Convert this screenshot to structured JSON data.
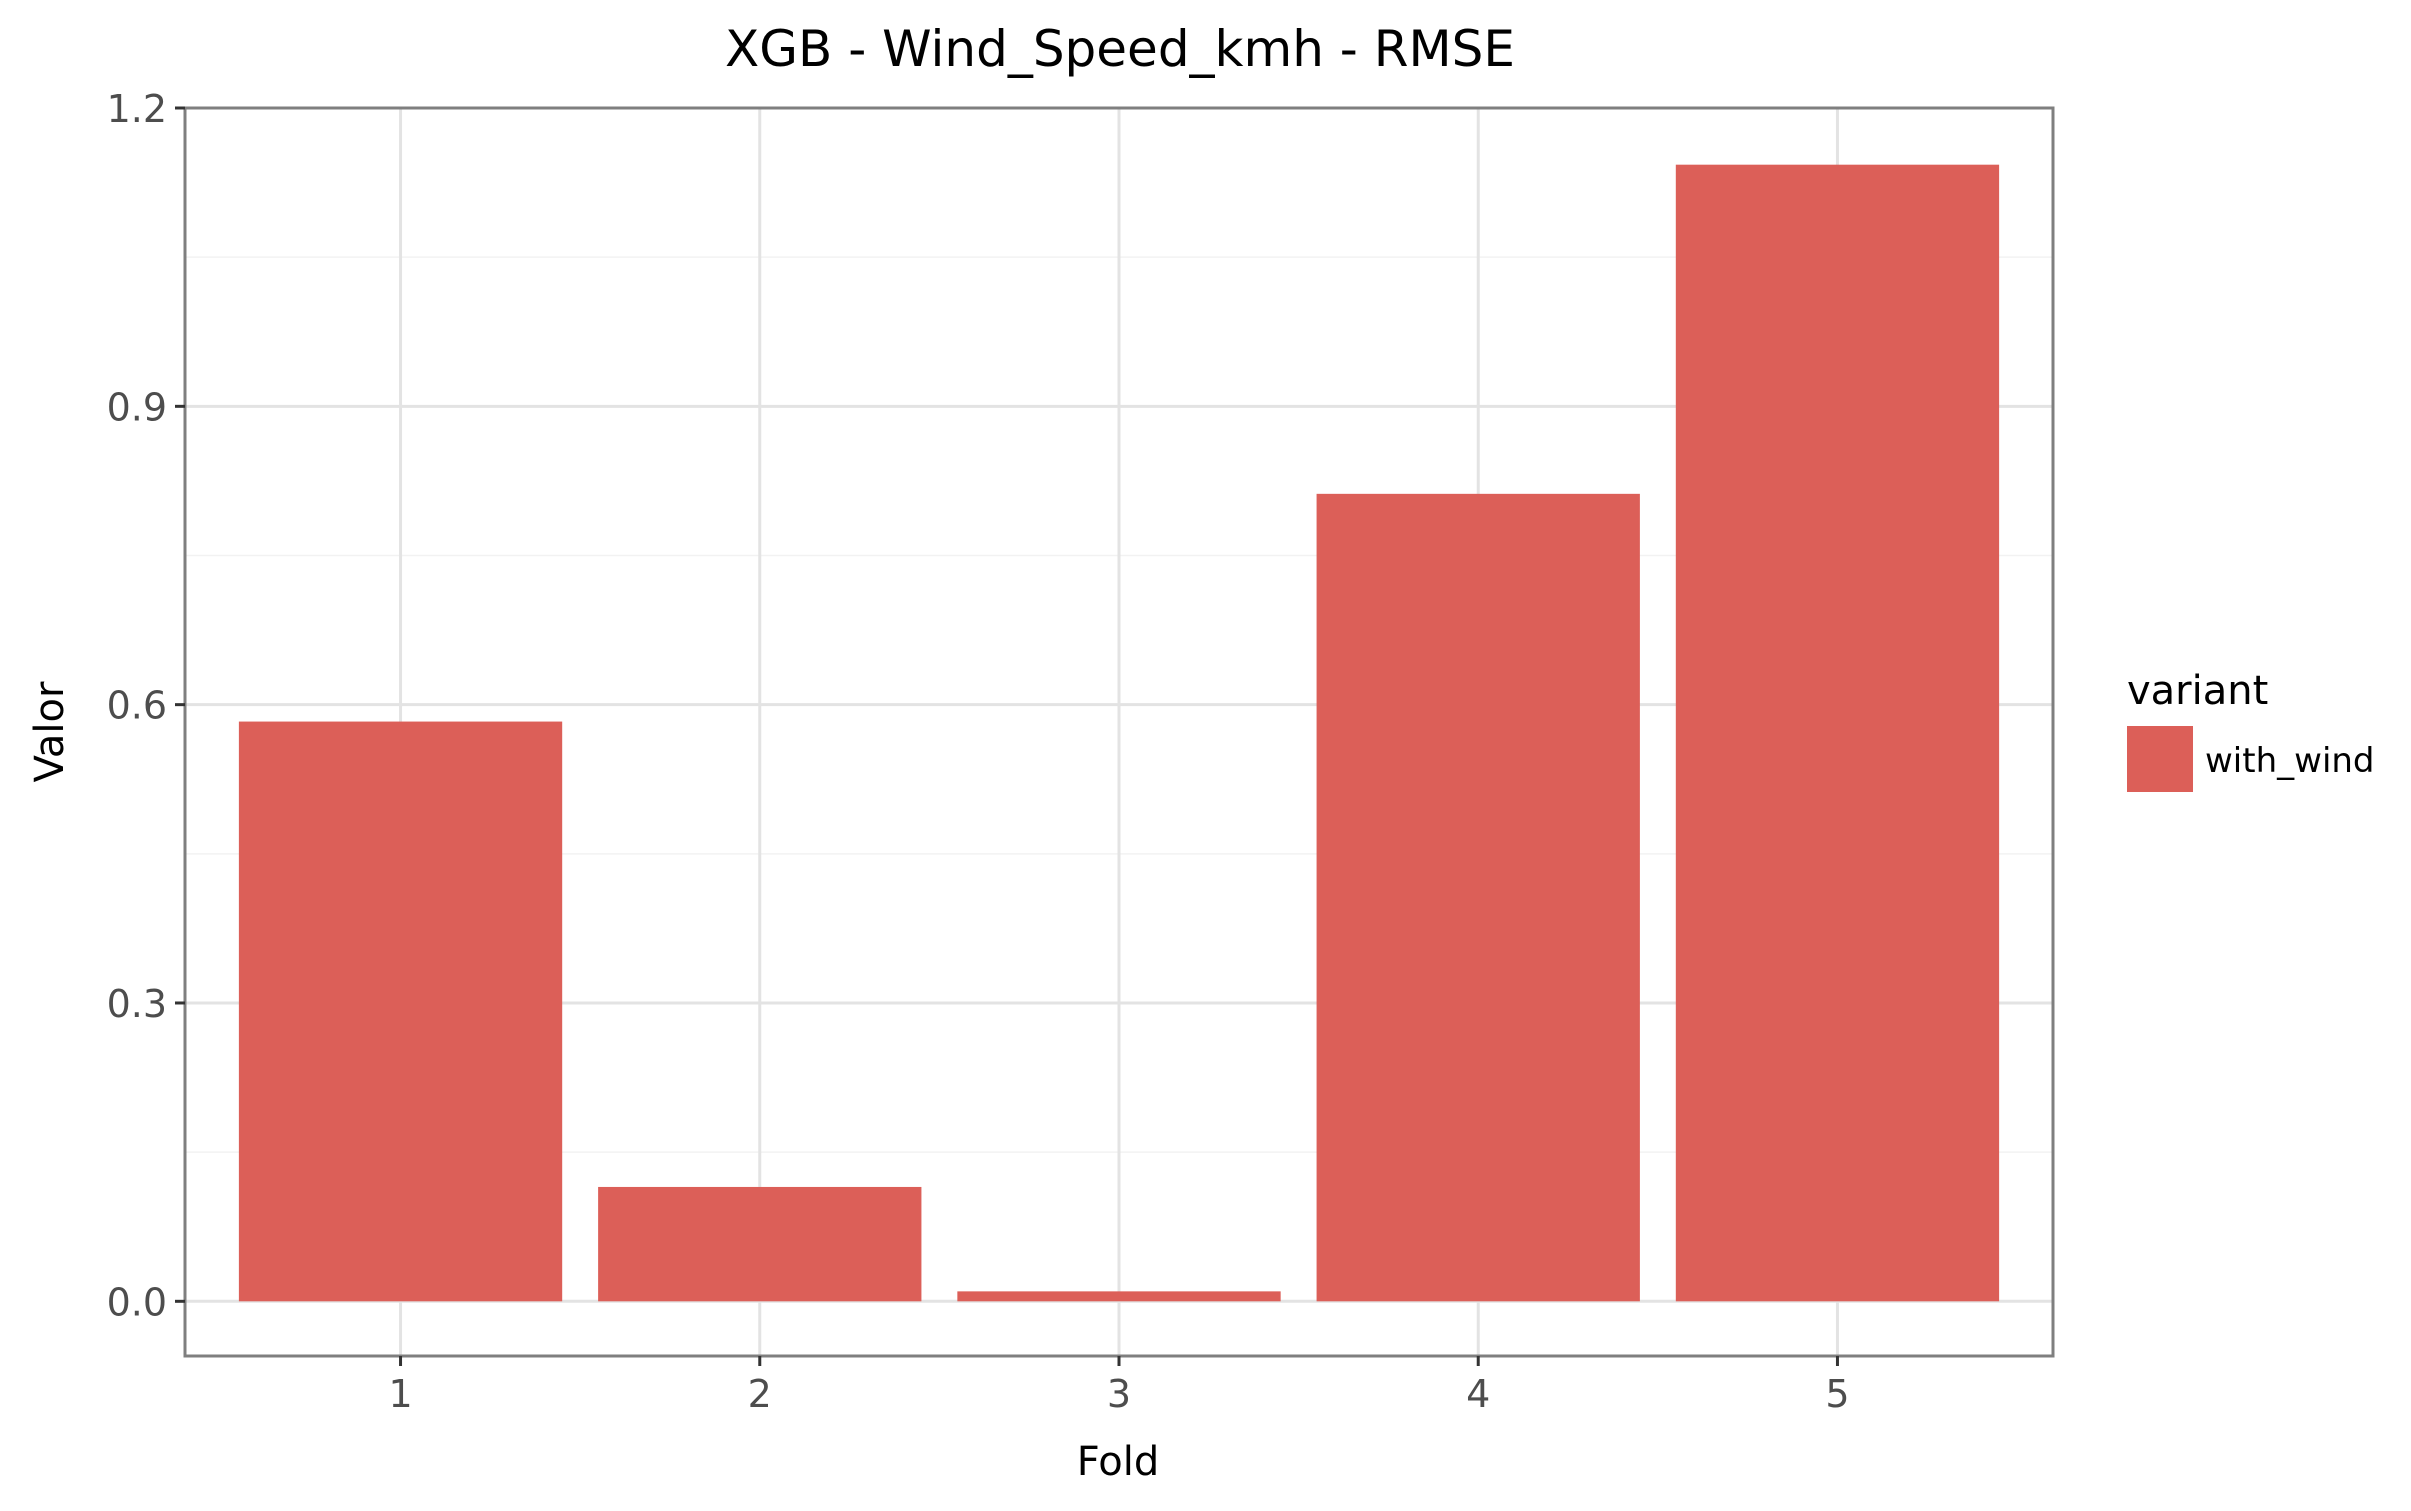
{
  "chart_data": {
    "type": "bar",
    "title": "XGB - Wind_Speed_kmh - RMSE",
    "xlabel": "Fold",
    "ylabel": "Valor",
    "categories": [
      "1",
      "2",
      "3",
      "4",
      "5"
    ],
    "series": [
      {
        "name": "with_wind",
        "values": [
          0.583,
          0.115,
          0.01,
          0.812,
          1.143
        ],
        "color": "#dc5f58"
      }
    ],
    "yticks": [
      0.0,
      0.3,
      0.6,
      0.9,
      1.2
    ],
    "ytick_labels": [
      "0.0",
      "0.3",
      "0.6",
      "0.9",
      "1.2"
    ],
    "ylim": [
      -0.055,
      1.2
    ],
    "grid": true,
    "legend": {
      "title": "variant",
      "position": "right"
    }
  }
}
